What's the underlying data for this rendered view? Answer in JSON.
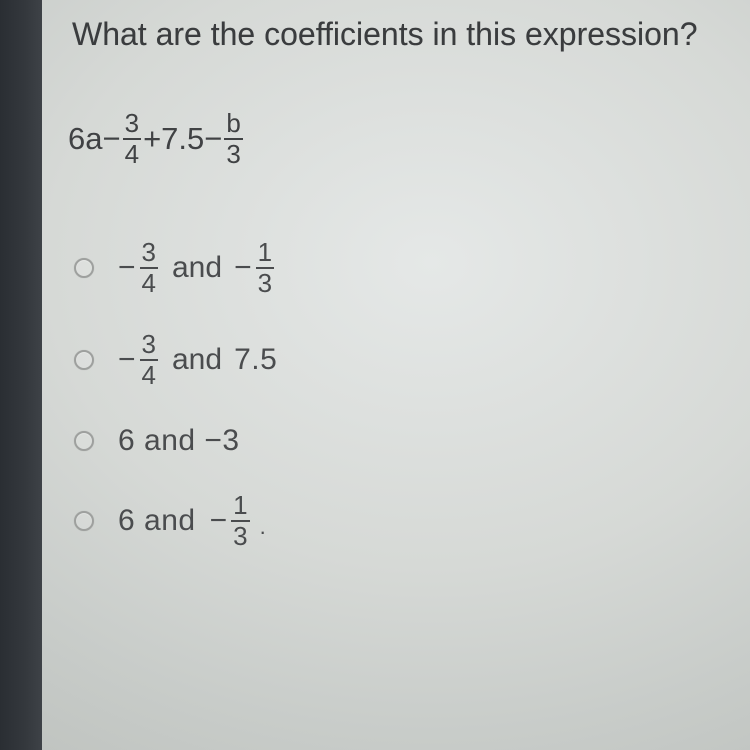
{
  "question": "What are the coefficients in this expression?",
  "expression": {
    "p1": "6a−",
    "f1_num": "3",
    "f1_den": "4",
    "p2": "+7.5−",
    "f2_num": "b",
    "f2_den": "3"
  },
  "options": [
    {
      "neg1": "−",
      "f1_num": "3",
      "f1_den": "4",
      "and": "and",
      "neg2": "−",
      "f2_num": "1",
      "f2_den": "3"
    },
    {
      "neg1": "−",
      "f1_num": "3",
      "f1_den": "4",
      "and": "and",
      "tail": "7.5"
    },
    {
      "text": "6 and −3"
    },
    {
      "lead": "6 and",
      "neg2": "−",
      "f2_num": "1",
      "f2_den": "3",
      "dot": "."
    }
  ],
  "colors": {
    "background": "#d6d9d6",
    "sidebar": "#34383d",
    "text": "#3a3c3e",
    "radio_border": "#9ea09e"
  },
  "typography": {
    "question_fontsize": 32,
    "expression_fontsize": 31,
    "option_fontsize": 30,
    "fraction_fontsize": 26,
    "font_family": "Arial"
  }
}
